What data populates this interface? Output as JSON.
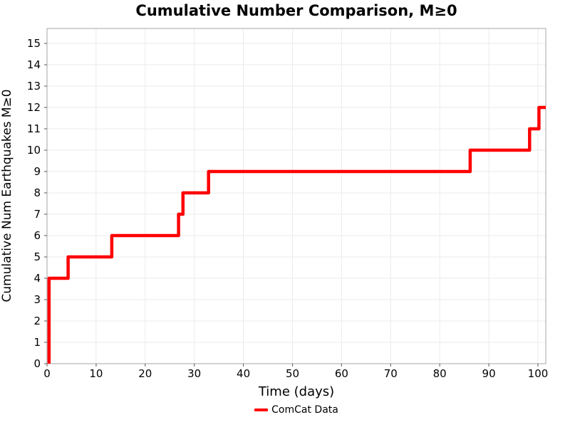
{
  "chart_data": {
    "type": "line",
    "subtype": "step-post",
    "title": "Cumulative Number Comparison, M≥0",
    "xlabel": "Time (days)",
    "ylabel": "Cumulative Num Earthquakes M≥0",
    "xlim": [
      0,
      101.6
    ],
    "ylim": [
      0,
      15.7
    ],
    "xticks": [
      0,
      10,
      20,
      30,
      40,
      50,
      60,
      70,
      80,
      90,
      100
    ],
    "yticks": [
      0,
      1,
      2,
      3,
      4,
      5,
      6,
      7,
      8,
      9,
      10,
      11,
      12,
      13,
      14,
      15
    ],
    "grid": true,
    "legend_position": "below-center",
    "colors": {
      "line": "#ff0000",
      "grid": "#ebebeb",
      "spine": "#b4b4b4",
      "tick": "#707070",
      "text": "#000000",
      "background": "#ffffff"
    },
    "series": [
      {
        "name": "ComCat Data",
        "color": "#ff0000",
        "linewidth": 4.5,
        "event_times_days": [
          0.4,
          0.4,
          0.4,
          0.4,
          4.3,
          13.2,
          26.8,
          27.7,
          32.9,
          86.2,
          98.3,
          100.2
        ],
        "final_cumulative_count": 12,
        "points": [
          [
            0.4,
            0
          ],
          [
            0.4,
            4
          ],
          [
            4.3,
            4
          ],
          [
            4.3,
            5
          ],
          [
            13.2,
            5
          ],
          [
            13.2,
            6
          ],
          [
            26.8,
            6
          ],
          [
            26.8,
            7
          ],
          [
            27.7,
            7
          ],
          [
            27.7,
            8
          ],
          [
            32.9,
            8
          ],
          [
            32.9,
            9
          ],
          [
            86.2,
            9
          ],
          [
            86.2,
            10
          ],
          [
            98.3,
            10
          ],
          [
            98.3,
            11
          ],
          [
            100.2,
            11
          ],
          [
            100.2,
            12
          ],
          [
            101.6,
            12
          ]
        ]
      }
    ]
  }
}
